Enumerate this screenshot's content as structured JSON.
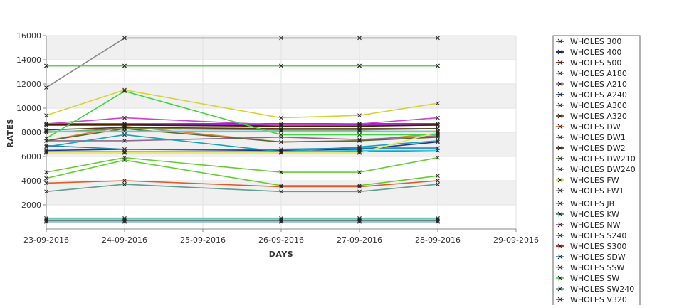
{
  "chart_data": {
    "type": "line",
    "xlabel": "DAYS",
    "ylabel": "RATES",
    "x_ticks": [
      "23-09-2016",
      "24-09-2016",
      "25-09-2016",
      "26-09-2016",
      "27-09-2016",
      "28-09-2016",
      "29-09-2016"
    ],
    "x_range": [
      "23-09-2016",
      "29-09-2016"
    ],
    "y_ticks": [
      2000,
      4000,
      6000,
      8000,
      10000,
      12000,
      14000,
      16000
    ],
    "ylim": [
      0,
      16000
    ],
    "grid": true,
    "legend_position": "right",
    "x": [
      "23-09-2016",
      "24-09-2016",
      "26-09-2016",
      "27-09-2016",
      "28-09-2016"
    ],
    "series": [
      {
        "name": "WHOLES 300",
        "color": "#2f4f4f",
        "values": [
          700,
          700,
          700,
          700,
          700
        ]
      },
      {
        "name": "WHOLES 400",
        "color": "#00008b",
        "values": [
          8600,
          8600,
          8600,
          8600,
          8600
        ]
      },
      {
        "name": "WHOLES 500",
        "color": "#8b0000",
        "values": [
          8700,
          8700,
          8700,
          8700,
          8700
        ]
      },
      {
        "name": "WHOLES A180",
        "color": "#cd853f",
        "values": [
          7300,
          8500,
          7200,
          7300,
          7900
        ]
      },
      {
        "name": "WHOLES A210",
        "color": "#8e6b8e",
        "values": [
          7300,
          7300,
          7600,
          7400,
          7700
        ]
      },
      {
        "name": "WHOLES A240",
        "color": "#1e3a8a",
        "values": [
          6500,
          6600,
          6500,
          6600,
          7200
        ]
      },
      {
        "name": "WHOLES A300",
        "color": "#6b8e23",
        "values": [
          8000,
          8300,
          8200,
          8200,
          8300
        ]
      },
      {
        "name": "WHOLES A320",
        "color": "#5a3a1a",
        "values": [
          8200,
          8400,
          8300,
          8300,
          8300
        ]
      },
      {
        "name": "WHOLES DW",
        "color": "#e05a2a",
        "values": [
          3800,
          4000,
          3500,
          3500,
          4000
        ]
      },
      {
        "name": "WHOLES DW1",
        "color": "#9932cc",
        "values": [
          8700,
          8700,
          8600,
          8600,
          8600
        ]
      },
      {
        "name": "WHOLES DW2",
        "color": "#4a2000",
        "values": [
          8600,
          8600,
          8500,
          8500,
          8600
        ]
      },
      {
        "name": "WHOLES DW210",
        "color": "#556b2f",
        "values": [
          7300,
          8300,
          7200,
          7300,
          7600
        ]
      },
      {
        "name": "WHOLES DW240",
        "color": "#cc44cc",
        "values": [
          8700,
          9200,
          8600,
          8700,
          9200
        ]
      },
      {
        "name": "WHOLES FW",
        "color": "#d4d43a",
        "values": [
          9400,
          11500,
          9200,
          9400,
          10400
        ]
      },
      {
        "name": "WHOLES FW1",
        "color": "#888888",
        "values": [
          11700,
          15800,
          15800,
          15800,
          15800
        ]
      },
      {
        "name": "WHOLES JB",
        "color": "#20b2aa",
        "values": [
          900,
          900,
          900,
          900,
          900
        ]
      },
      {
        "name": "WHOLES KW",
        "color": "#2e8b57",
        "values": [
          13500,
          13500,
          13500,
          13500,
          13500
        ]
      },
      {
        "name": "WHOLES NW",
        "color": "#8b5a8b",
        "values": [
          6400,
          6400,
          6400,
          6400,
          6500
        ]
      },
      {
        "name": "WHOLES S240",
        "color": "#1aa3b8",
        "values": [
          6800,
          7800,
          6400,
          6800,
          7300
        ]
      },
      {
        "name": "WHOLES S300",
        "color": "#cc0000",
        "values": [
          8100,
          8100,
          8100,
          8100,
          8100
        ]
      },
      {
        "name": "WHOLES SDW",
        "color": "#2c7fb8",
        "values": [
          6900,
          6600,
          6600,
          6700,
          6700
        ]
      },
      {
        "name": "WHOLES SSW",
        "color": "#5fcf2f",
        "values": [
          4200,
          5700,
          3600,
          3600,
          4400
        ]
      },
      {
        "name": "WHOLES SW",
        "color": "#3ad63a",
        "values": [
          7500,
          11400,
          7800,
          7800,
          7800
        ]
      },
      {
        "name": "WHOLES SW240",
        "color": "#5f9f8f",
        "values": [
          3100,
          3700,
          3100,
          3100,
          3700
        ]
      },
      {
        "name": "WHOLES V320",
        "color": "#2f7f5f",
        "values": [
          600,
          600,
          600,
          600,
          600
        ]
      }
    ],
    "extra_lines": [
      {
        "color": "#55dd22",
        "values": [
          13500,
          13500,
          13500,
          13500,
          13500
        ]
      },
      {
        "color": "#66cc33",
        "values": [
          4700,
          5900,
          4700,
          4700,
          5900
        ]
      },
      {
        "color": "#e6e65a",
        "values": [
          6300,
          6300,
          6300,
          6300,
          8000
        ]
      },
      {
        "color": "#6fc8c8",
        "values": [
          8100,
          8100,
          8100,
          8100,
          8100
        ]
      },
      {
        "color": "#3cc8d8",
        "values": [
          6400,
          6400,
          6400,
          6500,
          6500
        ]
      },
      {
        "color": "#a8c8a8",
        "values": [
          800,
          800,
          800,
          800,
          800
        ]
      },
      {
        "color": "#90c0e0",
        "values": [
          600,
          600,
          600,
          600,
          600
        ]
      }
    ]
  }
}
